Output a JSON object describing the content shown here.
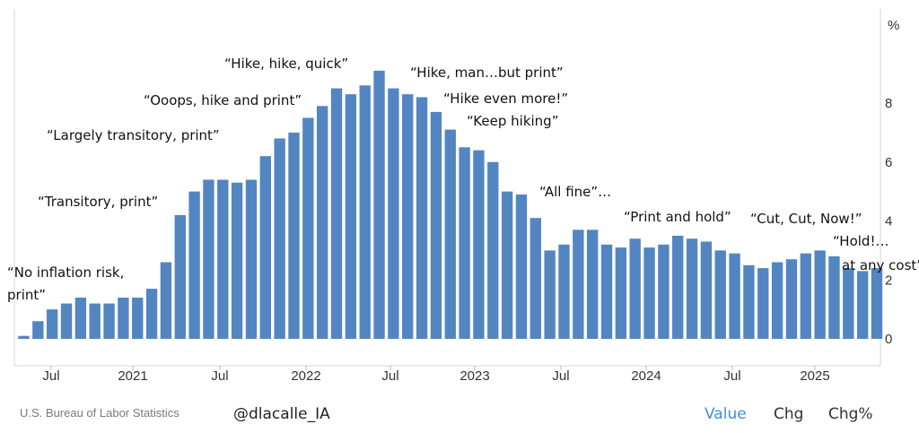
{
  "chart_data": {
    "type": "bar",
    "unit": "%",
    "ylim": [
      -1,
      11
    ],
    "yticks": [
      0,
      2,
      4,
      6,
      8
    ],
    "grid": false,
    "color": "#5385c3",
    "x_tick_labels": [
      "Jul",
      "2021",
      "Jul",
      "2022",
      "Jul",
      "2023",
      "Jul",
      "2024",
      "Jul",
      "2025"
    ],
    "values": [
      0.1,
      0.6,
      1.0,
      1.2,
      1.4,
      1.2,
      1.2,
      1.4,
      1.4,
      1.7,
      2.6,
      4.2,
      5.0,
      5.4,
      5.4,
      5.3,
      5.4,
      6.2,
      6.8,
      7.0,
      7.5,
      7.9,
      8.5,
      8.3,
      8.6,
      9.1,
      8.5,
      8.3,
      8.2,
      7.7,
      7.1,
      6.5,
      6.4,
      6.0,
      5.0,
      4.9,
      4.1,
      3.0,
      3.2,
      3.7,
      3.7,
      3.2,
      3.1,
      3.4,
      3.1,
      3.2,
      3.5,
      3.4,
      3.3,
      3.0,
      2.9,
      2.5,
      2.4,
      2.6,
      2.7,
      2.9,
      3.0,
      2.8,
      2.4,
      2.3,
      2.4
    ],
    "annotations": [
      "“No inflation risk,",
      "print”",
      "“Transitory, print”",
      "“Largely transitory, print”",
      "“Ooops, hike and print”",
      "“Hike, hike, quick”",
      "“Hike, man…but print”",
      "“Hike even more!”",
      "“Keep hiking”",
      "“All fine”…",
      "“Print and hold”",
      "“Cut, Cut, Now!”",
      "“Hold!…",
      "at any cost”"
    ]
  },
  "footer": {
    "source": "U.S. Bureau of Labor Statistics",
    "handle": "@dlacalle_IA"
  },
  "tabs": {
    "value": "Value",
    "chg": "Chg",
    "chg_pct": "Chg%"
  },
  "colors": {
    "active_tab": "#3a8fe0",
    "bar": "#5385c3"
  }
}
